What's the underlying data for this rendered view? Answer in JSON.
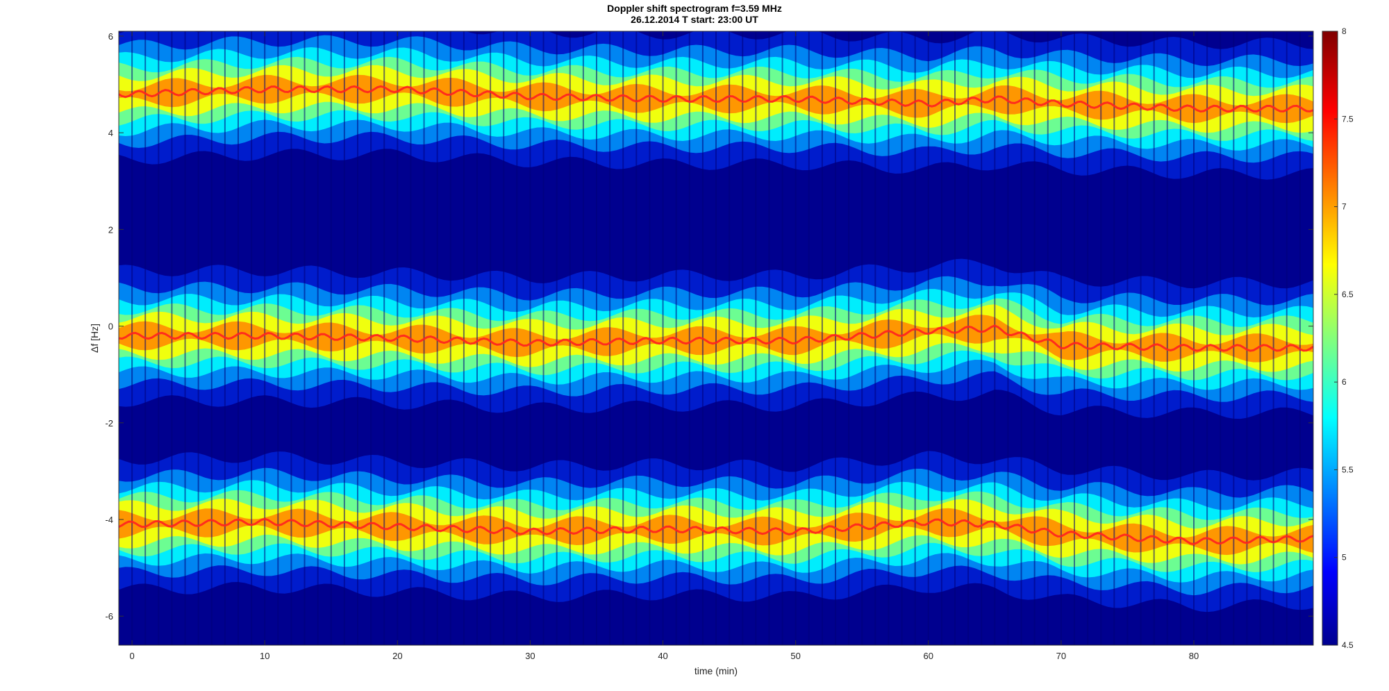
{
  "chart_data": {
    "type": "heatmap",
    "title": "Doppler shift spectrogram f=3.59 MHz",
    "subtitle": "26.12.2014    T start: 23:00 UT",
    "xlabel": "time (min)",
    "ylabel": "Δf [Hz]",
    "xlim": [
      -1,
      89
    ],
    "ylim": [
      -6.6,
      6.1
    ],
    "xticks": [
      0,
      10,
      20,
      30,
      40,
      50,
      60,
      70,
      80
    ],
    "yticks": [
      6,
      4,
      2,
      0,
      -2,
      -4,
      -6
    ],
    "colormap": "jet",
    "colorbar": {
      "range": [
        4.5,
        8
      ],
      "ticks": [
        8,
        7.5,
        7,
        6.5,
        6,
        5.5,
        5,
        4.5
      ]
    },
    "grid": false,
    "bands": [
      {
        "name": "upper",
        "center_x": [
          0,
          10,
          20,
          30,
          40,
          50,
          60,
          65,
          70,
          80,
          88
        ],
        "center_y": [
          4.8,
          4.9,
          4.9,
          4.75,
          4.7,
          4.7,
          4.6,
          4.7,
          4.6,
          4.5,
          4.5
        ]
      },
      {
        "name": "middle",
        "center_x": [
          0,
          10,
          20,
          30,
          40,
          50,
          60,
          65,
          70,
          80,
          88
        ],
        "center_y": [
          -0.2,
          -0.2,
          -0.25,
          -0.35,
          -0.3,
          -0.3,
          -0.1,
          -0.05,
          -0.4,
          -0.45,
          -0.45
        ]
      },
      {
        "name": "lower",
        "center_x": [
          0,
          10,
          20,
          30,
          40,
          50,
          60,
          65,
          70,
          80,
          88
        ],
        "center_y": [
          -4.1,
          -4.05,
          -4.15,
          -4.25,
          -4.2,
          -4.25,
          -4.05,
          -4.1,
          -4.3,
          -4.45,
          -4.4
        ]
      }
    ],
    "colors": {
      "background": "#00008f",
      "peak": "#ff2020",
      "mid": "#ffff00",
      "edge": "#00ffff"
    }
  }
}
